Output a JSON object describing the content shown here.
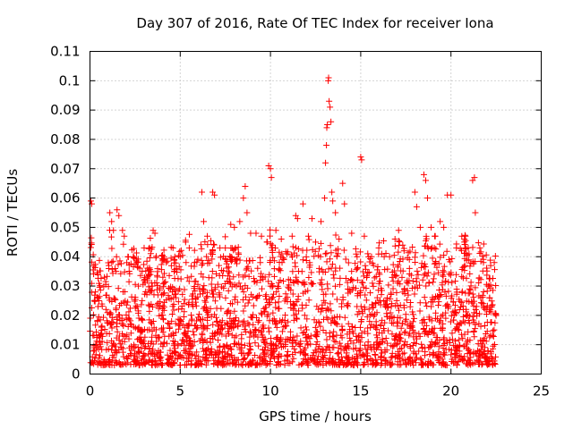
{
  "chart_data": {
    "type": "scatter",
    "title": "Day 307 of 2016, Rate Of TEC Index for receiver Iona",
    "xlabel": "GPS time / hours",
    "ylabel": "ROTI / TECUs",
    "xlim": [
      0,
      25
    ],
    "ylim": [
      0,
      0.11
    ],
    "xticks": [
      0,
      5,
      10,
      15,
      20,
      25
    ],
    "xtick_labels": [
      "0",
      "5",
      "10",
      "15",
      "20",
      "25"
    ],
    "yticks": [
      0,
      0.01,
      0.02,
      0.03,
      0.04,
      0.05,
      0.06,
      0.07,
      0.08,
      0.09,
      0.1,
      0.11
    ],
    "ytick_labels": [
      "0",
      "0.01",
      "0.02",
      "0.03",
      "0.04",
      "0.05",
      "0.06",
      "0.07",
      "0.08",
      "0.09",
      "0.1",
      "0.11"
    ],
    "grid": true,
    "marker": "+",
    "marker_color": "#ff0000",
    "series": [
      {
        "name": "ROTI",
        "points": [
          [
            0.05,
            0.059
          ],
          [
            0.1,
            0.058
          ],
          [
            0.3,
            0.028
          ],
          [
            0.5,
            0.025
          ],
          [
            0.8,
            0.033
          ],
          [
            1.1,
            0.055
          ],
          [
            1.2,
            0.052
          ],
          [
            1.3,
            0.049
          ],
          [
            1.5,
            0.056
          ],
          [
            1.6,
            0.054
          ],
          [
            1.8,
            0.049
          ],
          [
            1.9,
            0.047
          ],
          [
            2.1,
            0.04
          ],
          [
            2.4,
            0.04
          ],
          [
            2.6,
            0.038
          ],
          [
            3.0,
            0.043
          ],
          [
            3.3,
            0.043
          ],
          [
            3.5,
            0.049
          ],
          [
            3.6,
            0.048
          ],
          [
            4.1,
            0.04
          ],
          [
            4.6,
            0.043
          ],
          [
            4.7,
            0.04
          ],
          [
            4.8,
            0.036
          ],
          [
            5.0,
            0.04
          ],
          [
            5.3,
            0.045
          ],
          [
            5.5,
            0.043
          ],
          [
            5.8,
            0.038
          ],
          [
            6.2,
            0.062
          ],
          [
            6.3,
            0.052
          ],
          [
            6.5,
            0.047
          ],
          [
            6.7,
            0.041
          ],
          [
            6.8,
            0.062
          ],
          [
            6.9,
            0.061
          ],
          [
            7.2,
            0.043
          ],
          [
            7.5,
            0.043
          ],
          [
            7.8,
            0.051
          ],
          [
            8.0,
            0.05
          ],
          [
            8.3,
            0.052
          ],
          [
            8.5,
            0.06
          ],
          [
            8.6,
            0.064
          ],
          [
            8.7,
            0.055
          ],
          [
            8.9,
            0.048
          ],
          [
            9.2,
            0.048
          ],
          [
            9.5,
            0.047
          ],
          [
            9.8,
            0.045
          ],
          [
            9.9,
            0.071
          ],
          [
            10.0,
            0.07
          ],
          [
            10.05,
            0.067
          ],
          [
            10.3,
            0.049
          ],
          [
            10.6,
            0.046
          ],
          [
            10.9,
            0.041
          ],
          [
            11.2,
            0.047
          ],
          [
            11.4,
            0.054
          ],
          [
            11.5,
            0.053
          ],
          [
            11.8,
            0.058
          ],
          [
            12.1,
            0.047
          ],
          [
            12.3,
            0.053
          ],
          [
            12.5,
            0.045
          ],
          [
            12.8,
            0.052
          ],
          [
            13.0,
            0.06
          ],
          [
            13.05,
            0.072
          ],
          [
            13.1,
            0.078
          ],
          [
            13.12,
            0.084
          ],
          [
            13.15,
            0.085
          ],
          [
            13.2,
            0.1
          ],
          [
            13.22,
            0.101
          ],
          [
            13.25,
            0.093
          ],
          [
            13.3,
            0.091
          ],
          [
            13.35,
            0.086
          ],
          [
            13.4,
            0.062
          ],
          [
            13.45,
            0.059
          ],
          [
            13.6,
            0.055
          ],
          [
            13.8,
            0.046
          ],
          [
            14.0,
            0.065
          ],
          [
            14.1,
            0.058
          ],
          [
            14.5,
            0.048
          ],
          [
            14.8,
            0.04
          ],
          [
            15.0,
            0.074
          ],
          [
            15.05,
            0.073
          ],
          [
            15.2,
            0.047
          ],
          [
            15.6,
            0.04
          ],
          [
            16.0,
            0.043
          ],
          [
            16.3,
            0.04
          ],
          [
            16.6,
            0.04
          ],
          [
            16.9,
            0.046
          ],
          [
            17.1,
            0.049
          ],
          [
            17.4,
            0.042
          ],
          [
            17.7,
            0.036
          ],
          [
            18.0,
            0.062
          ],
          [
            18.1,
            0.057
          ],
          [
            18.3,
            0.05
          ],
          [
            18.5,
            0.068
          ],
          [
            18.6,
            0.066
          ],
          [
            18.7,
            0.06
          ],
          [
            18.9,
            0.05
          ],
          [
            19.1,
            0.047
          ],
          [
            19.4,
            0.052
          ],
          [
            19.6,
            0.05
          ],
          [
            19.8,
            0.061
          ],
          [
            20.0,
            0.061
          ],
          [
            20.3,
            0.043
          ],
          [
            20.6,
            0.047
          ],
          [
            20.8,
            0.047
          ],
          [
            21.0,
            0.041
          ],
          [
            21.2,
            0.066
          ],
          [
            21.3,
            0.067
          ],
          [
            21.35,
            0.055
          ],
          [
            21.6,
            0.043
          ],
          [
            21.8,
            0.038
          ],
          [
            22.2,
            0.037
          ],
          [
            22.4,
            0.038
          ]
        ],
        "dense_band": {
          "x_range": [
            0.0,
            22.5
          ],
          "y_base_range": [
            0.003,
            0.02
          ],
          "note": "continuous dense cloud of + markers between roughly 0.003 and 0.02 TECUs across the whole observation window, with bursts up to ~0.04"
        }
      }
    ]
  }
}
